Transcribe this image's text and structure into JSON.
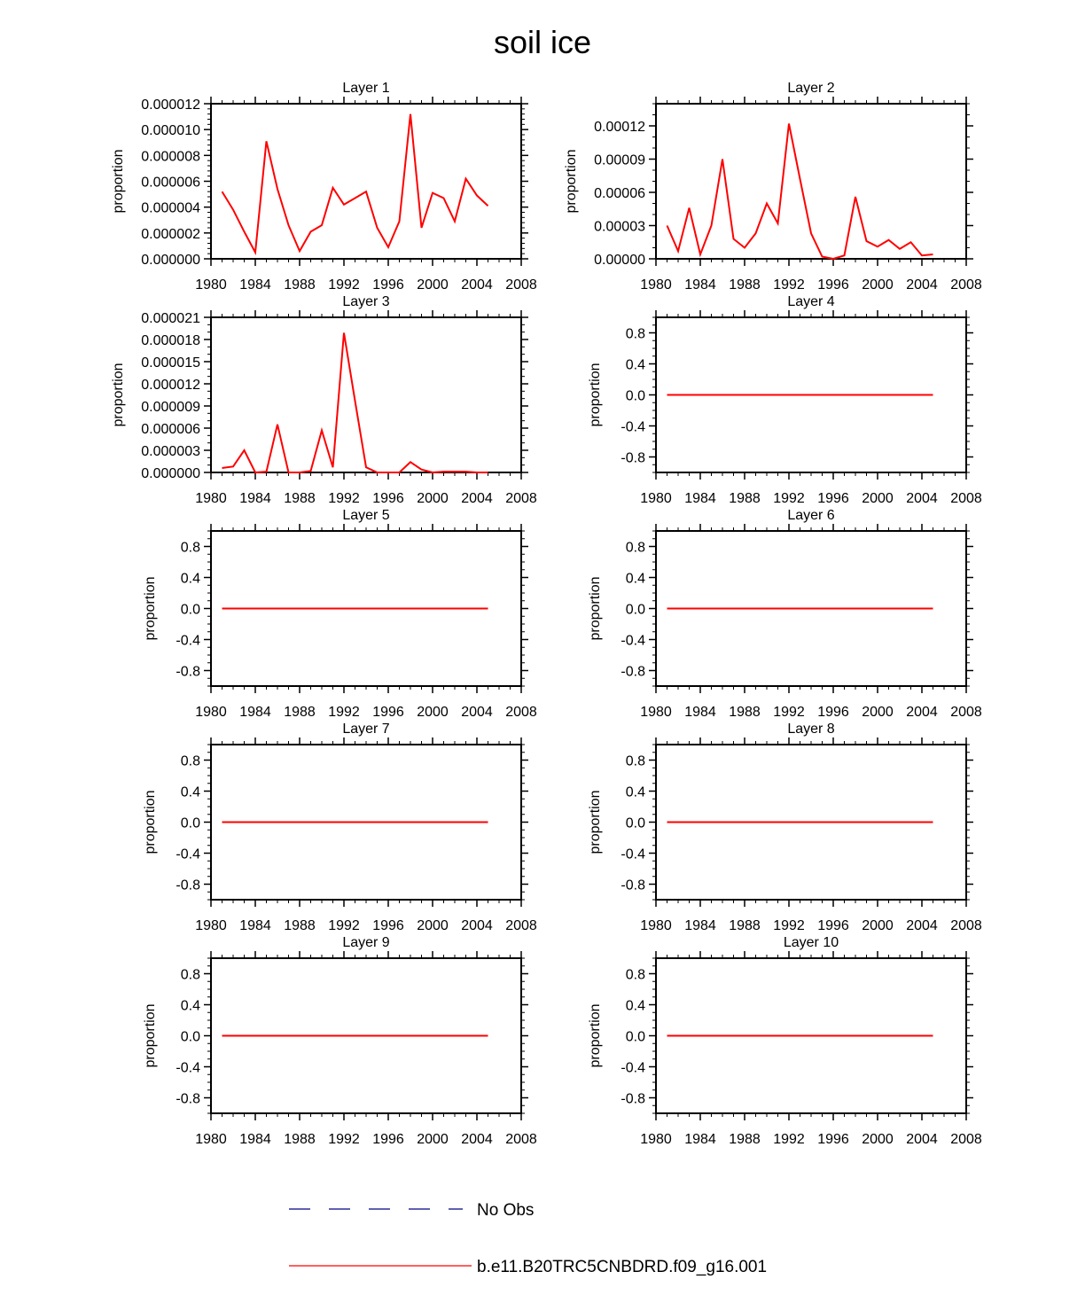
{
  "title": "soil ice",
  "colors": {
    "model": "#ff0000",
    "obs": "#000080",
    "axis": "#000000"
  },
  "legend": [
    {
      "label": "No Obs",
      "style": "dashed",
      "color": "#000080"
    },
    {
      "label": "b.e11.B20TRC5CNBDRD.f09_g16.001",
      "style": "solid",
      "color": "#ff0000"
    }
  ],
  "chart_data": [
    {
      "type": "line",
      "title": "Layer 1",
      "ylabel": "proportion",
      "xlim": [
        1980,
        2008
      ],
      "xticks": [
        1980,
        1984,
        1988,
        1992,
        1996,
        2000,
        2004,
        2008
      ],
      "ylim": [
        0,
        1.2e-05
      ],
      "yticks": [
        "0.000000",
        "0.000002",
        "0.000004",
        "0.000006",
        "0.000008",
        "0.000010",
        "0.000012"
      ],
      "yminor": 5,
      "x": [
        1981,
        1982,
        1983,
        1984,
        1985,
        1986,
        1987,
        1988,
        1989,
        1990,
        1991,
        1992,
        1993,
        1994,
        1995,
        1996,
        1997,
        1998,
        1999,
        2000,
        2001,
        2002,
        2003,
        2004,
        2005
      ],
      "series": [
        {
          "name": "b.e11.B20TRC5CNBDRD.f09_g16.001",
          "values": [
            5.2e-06,
            3.8e-06,
            2.1e-06,
            5e-07,
            9.1e-06,
            5.4e-06,
            2.6e-06,
            6e-07,
            2.1e-06,
            2.6e-06,
            5.5e-06,
            4.2e-06,
            4.7e-06,
            5.2e-06,
            2.4e-06,
            9e-07,
            2.9e-06,
            1.12e-05,
            2.4e-06,
            5.1e-06,
            4.7e-06,
            2.9e-06,
            6.2e-06,
            4.9e-06,
            4.1e-06
          ]
        }
      ]
    },
    {
      "type": "line",
      "title": "Layer 2",
      "ylabel": "proportion",
      "xlim": [
        1980,
        2008
      ],
      "xticks": [
        1980,
        1984,
        1988,
        1992,
        1996,
        2000,
        2004,
        2008
      ],
      "ylim": [
        0,
        0.00014
      ],
      "yticks": [
        "0.00000",
        "0.00003",
        "0.00006",
        "0.00009",
        "0.00012"
      ],
      "yminor": 3,
      "x": [
        1981,
        1982,
        1983,
        1984,
        1985,
        1986,
        1987,
        1988,
        1989,
        1990,
        1991,
        1992,
        1993,
        1994,
        1995,
        1996,
        1997,
        1998,
        1999,
        2000,
        2001,
        2002,
        2003,
        2004,
        2005
      ],
      "series": [
        {
          "name": "b.e11.B20TRC5CNBDRD.f09_g16.001",
          "values": [
            3e-05,
            7e-06,
            4.6e-05,
            4e-06,
            3e-05,
            9e-05,
            1.8e-05,
            1e-05,
            2.3e-05,
            5e-05,
            3.2e-05,
            0.000122,
            7.2e-05,
            2.3e-05,
            2e-06,
            0.0,
            3e-06,
            5.6e-05,
            1.6e-05,
            1.1e-05,
            1.7e-05,
            9e-06,
            1.5e-05,
            3e-06,
            4e-06
          ]
        }
      ]
    },
    {
      "type": "line",
      "title": "Layer 3",
      "ylabel": "proportion",
      "xlim": [
        1980,
        2008
      ],
      "xticks": [
        1980,
        1984,
        1988,
        1992,
        1996,
        2000,
        2004,
        2008
      ],
      "ylim": [
        0,
        2.1e-05
      ],
      "yticks": [
        "0.000000",
        "0.000003",
        "0.000006",
        "0.000009",
        "0.000012",
        "0.000015",
        "0.000018",
        "0.000021"
      ],
      "yminor": 3,
      "x": [
        1981,
        1982,
        1983,
        1984,
        1985,
        1986,
        1987,
        1988,
        1989,
        1990,
        1991,
        1992,
        1993,
        1994,
        1995,
        1996,
        1997,
        1998,
        1999,
        2000,
        2001,
        2002,
        2003,
        2004,
        2005
      ],
      "series": [
        {
          "name": "b.e11.B20TRC5CNBDRD.f09_g16.001",
          "values": [
            6e-07,
            8e-07,
            3e-06,
            0.0,
            1e-07,
            6.5e-06,
            0.0,
            0.0,
            2e-07,
            5.7e-06,
            7e-07,
            1.89e-05,
            9.7e-06,
            7e-07,
            0.0,
            0.0,
            0.0,
            1.4e-06,
            4e-07,
            0.0,
            1e-07,
            1e-07,
            1e-07,
            0.0,
            0.0
          ]
        }
      ]
    },
    {
      "type": "line",
      "title": "Layer 4",
      "ylabel": "proportion",
      "xlim": [
        1980,
        2008
      ],
      "xticks": [
        1980,
        1984,
        1988,
        1992,
        1996,
        2000,
        2004,
        2008
      ],
      "ylim": [
        -1,
        1
      ],
      "yticks": [
        "-0.8",
        "-0.4",
        "0.0",
        "0.4",
        "0.8"
      ],
      "yminor": 4,
      "x": [
        1981,
        2005
      ],
      "series": [
        {
          "name": "b.e11.B20TRC5CNBDRD.f09_g16.001",
          "values": [
            0,
            0
          ]
        }
      ]
    },
    {
      "type": "line",
      "title": "Layer 5",
      "ylabel": "proportion",
      "xlim": [
        1980,
        2008
      ],
      "xticks": [
        1980,
        1984,
        1988,
        1992,
        1996,
        2000,
        2004,
        2008
      ],
      "ylim": [
        -1,
        1
      ],
      "yticks": [
        "-0.8",
        "-0.4",
        "0.0",
        "0.4",
        "0.8"
      ],
      "yminor": 4,
      "x": [
        1981,
        2005
      ],
      "series": [
        {
          "name": "b.e11.B20TRC5CNBDRD.f09_g16.001",
          "values": [
            0,
            0
          ]
        }
      ]
    },
    {
      "type": "line",
      "title": "Layer 6",
      "ylabel": "proportion",
      "xlim": [
        1980,
        2008
      ],
      "xticks": [
        1980,
        1984,
        1988,
        1992,
        1996,
        2000,
        2004,
        2008
      ],
      "ylim": [
        -1,
        1
      ],
      "yticks": [
        "-0.8",
        "-0.4",
        "0.0",
        "0.4",
        "0.8"
      ],
      "yminor": 4,
      "x": [
        1981,
        2005
      ],
      "series": [
        {
          "name": "b.e11.B20TRC5CNBDRD.f09_g16.001",
          "values": [
            0,
            0
          ]
        }
      ]
    },
    {
      "type": "line",
      "title": "Layer 7",
      "ylabel": "proportion",
      "xlim": [
        1980,
        2008
      ],
      "xticks": [
        1980,
        1984,
        1988,
        1992,
        1996,
        2000,
        2004,
        2008
      ],
      "ylim": [
        -1,
        1
      ],
      "yticks": [
        "-0.8",
        "-0.4",
        "0.0",
        "0.4",
        "0.8"
      ],
      "yminor": 4,
      "x": [
        1981,
        2005
      ],
      "series": [
        {
          "name": "b.e11.B20TRC5CNBDRD.f09_g16.001",
          "values": [
            0,
            0
          ]
        }
      ]
    },
    {
      "type": "line",
      "title": "Layer 8",
      "ylabel": "proportion",
      "xlim": [
        1980,
        2008
      ],
      "xticks": [
        1980,
        1984,
        1988,
        1992,
        1996,
        2000,
        2004,
        2008
      ],
      "ylim": [
        -1,
        1
      ],
      "yticks": [
        "-0.8",
        "-0.4",
        "0.0",
        "0.4",
        "0.8"
      ],
      "yminor": 4,
      "x": [
        1981,
        2005
      ],
      "series": [
        {
          "name": "b.e11.B20TRC5CNBDRD.f09_g16.001",
          "values": [
            0,
            0
          ]
        }
      ]
    },
    {
      "type": "line",
      "title": "Layer 9",
      "ylabel": "proportion",
      "xlim": [
        1980,
        2008
      ],
      "xticks": [
        1980,
        1984,
        1988,
        1992,
        1996,
        2000,
        2004,
        2008
      ],
      "ylim": [
        -1,
        1
      ],
      "yticks": [
        "-0.8",
        "-0.4",
        "0.0",
        "0.4",
        "0.8"
      ],
      "yminor": 4,
      "x": [
        1981,
        2005
      ],
      "series": [
        {
          "name": "b.e11.B20TRC5CNBDRD.f09_g16.001",
          "values": [
            0,
            0
          ]
        }
      ]
    },
    {
      "type": "line",
      "title": "Layer 10",
      "ylabel": "proportion",
      "xlim": [
        1980,
        2008
      ],
      "xticks": [
        1980,
        1984,
        1988,
        1992,
        1996,
        2000,
        2004,
        2008
      ],
      "ylim": [
        -1,
        1
      ],
      "yticks": [
        "-0.8",
        "-0.4",
        "0.0",
        "0.4",
        "0.8"
      ],
      "yminor": 4,
      "x": [
        1981,
        2005
      ],
      "series": [
        {
          "name": "b.e11.B20TRC5CNBDRD.f09_g16.001",
          "values": [
            0,
            0
          ]
        }
      ]
    }
  ]
}
